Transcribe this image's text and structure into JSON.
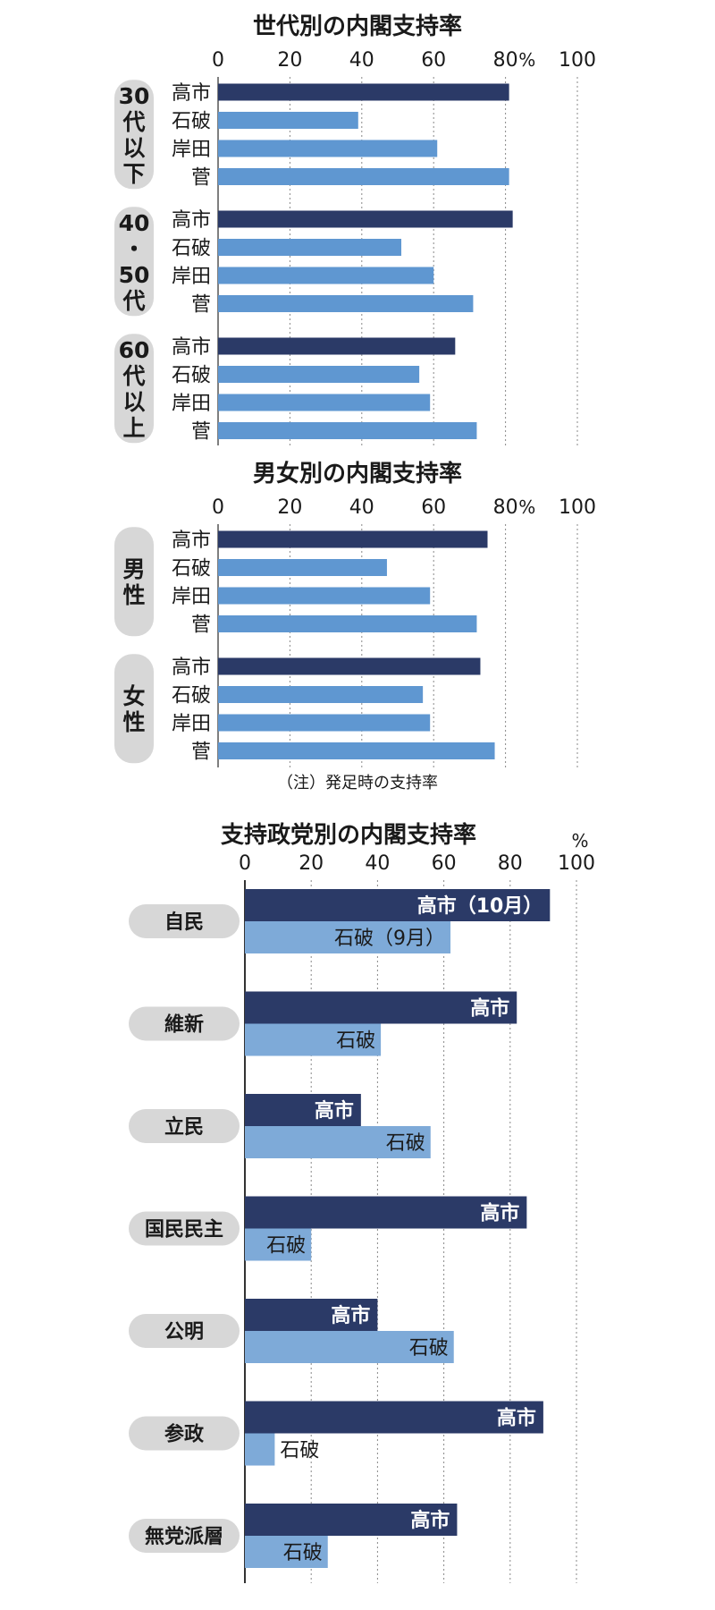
{
  "colors": {
    "dark": "#2b3a67",
    "light": "#5f97d1",
    "party_light": "#7eaad8",
    "pill": "#d7d7d7",
    "grid": "#888888",
    "text": "#1a1a1a"
  },
  "chart_data": [
    {
      "type": "bar",
      "title": "世代別の内閣支持率",
      "unit": "%",
      "xlim": [
        0,
        100
      ],
      "ticks": [
        0,
        20,
        40,
        60,
        80,
        100
      ],
      "grid": true,
      "groups": [
        {
          "name": "30代以下",
          "pill_lines": [
            "30",
            "代",
            "以",
            "下"
          ],
          "bars": [
            {
              "label": "高市",
              "value": 81
            },
            {
              "label": "石破",
              "value": 39
            },
            {
              "label": "岸田",
              "value": 61
            },
            {
              "label": "菅",
              "value": 81
            }
          ]
        },
        {
          "name": "40・50代",
          "pill_lines": [
            "40",
            "・",
            "50",
            "代"
          ],
          "bars": [
            {
              "label": "高市",
              "value": 82
            },
            {
              "label": "石破",
              "value": 51
            },
            {
              "label": "岸田",
              "value": 60
            },
            {
              "label": "菅",
              "value": 71
            }
          ]
        },
        {
          "name": "60代以上",
          "pill_lines": [
            "60",
            "代",
            "以",
            "上"
          ],
          "bars": [
            {
              "label": "高市",
              "value": 66
            },
            {
              "label": "石破",
              "value": 56
            },
            {
              "label": "岸田",
              "value": 59
            },
            {
              "label": "菅",
              "value": 72
            }
          ]
        }
      ]
    },
    {
      "type": "bar",
      "title": "男女別の内閣支持率",
      "unit": "%",
      "xlim": [
        0,
        100
      ],
      "ticks": [
        0,
        20,
        40,
        60,
        80,
        100
      ],
      "grid": true,
      "note": "（注）発足時の支持率",
      "groups": [
        {
          "name": "男性",
          "pill_lines": [
            "男",
            "性"
          ],
          "bars": [
            {
              "label": "高市",
              "value": 75
            },
            {
              "label": "石破",
              "value": 47
            },
            {
              "label": "岸田",
              "value": 59
            },
            {
              "label": "菅",
              "value": 72
            }
          ]
        },
        {
          "name": "女性",
          "pill_lines": [
            "女",
            "性"
          ],
          "bars": [
            {
              "label": "高市",
              "value": 73
            },
            {
              "label": "石破",
              "value": 57
            },
            {
              "label": "岸田",
              "value": 59
            },
            {
              "label": "菅",
              "value": 77
            }
          ]
        }
      ]
    },
    {
      "type": "bar",
      "title": "支持政党別の内閣支持率",
      "unit": "%",
      "xlim": [
        0,
        100
      ],
      "ticks": [
        0,
        20,
        40,
        60,
        80,
        100
      ],
      "grid": true,
      "series": [
        {
          "name": "高市（10月）",
          "values": [
            92,
            82,
            35,
            85,
            40,
            90,
            64
          ]
        },
        {
          "name": "石破（9月）",
          "values": [
            62,
            41,
            56,
            20,
            63,
            9,
            25
          ]
        }
      ],
      "categories": [
        "自民",
        "維新",
        "立民",
        "国民民主",
        "公明",
        "参政",
        "無党派層"
      ],
      "bar_labels": [
        [
          "高市（10月）",
          "石破（9月）"
        ],
        [
          "高市",
          "石破"
        ],
        [
          "高市",
          "石破"
        ],
        [
          "高市",
          "石破"
        ],
        [
          "高市",
          "石破"
        ],
        [
          "高市",
          "石破"
        ],
        [
          "高市",
          "石破"
        ]
      ]
    }
  ]
}
